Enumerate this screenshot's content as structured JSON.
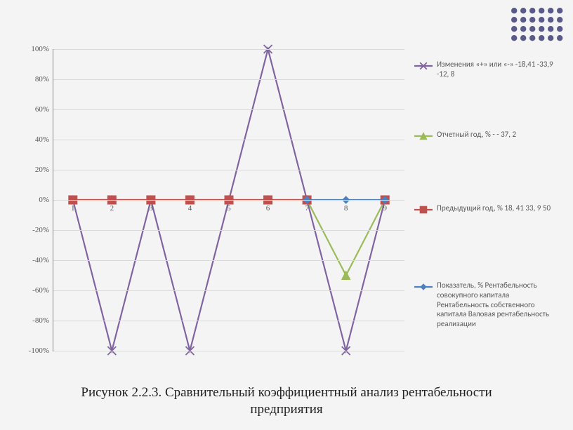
{
  "decor": {
    "dot_color": "#5a5a8a",
    "rows": 4,
    "cols": 6,
    "r": 4.2,
    "gap": 13
  },
  "caption": {
    "line1": "Рисунок 2.2.3. Сравнительный коэффициентный анализ рентабельности",
    "line2": "предприятия",
    "fontsize": 19
  },
  "chart": {
    "type": "line",
    "background_color": "#f4f4f4",
    "grid_color": "#d9d9d9",
    "axis_color": "#888888",
    "tick_font_color": "#595959",
    "tick_fontsize": 11,
    "ylim": [
      -100,
      100
    ],
    "ytick_step": 20,
    "yticks": [
      "-100%",
      "-80%",
      "-60%",
      "-40%",
      "-20%",
      "0%",
      "20%",
      "40%",
      "60%",
      "80%",
      "100%"
    ],
    "categories": [
      "1",
      "2",
      "3",
      "4",
      "5",
      "6",
      "7",
      "8",
      "9"
    ],
    "series": [
      {
        "name": "Изменения «+» или «-» -18,41 -33,9 -12, 8",
        "color": "#8064a2",
        "line_width": 2.2,
        "marker": "x",
        "marker_size": 6,
        "values": [
          0,
          -100,
          0,
          -100,
          0,
          100,
          0,
          -100,
          0
        ]
      },
      {
        "name": "Отчетный год, % - - 37, 2",
        "color": "#9bbb59",
        "line_width": 2.2,
        "marker": "triangle",
        "marker_size": 6,
        "values": [
          0,
          0,
          0,
          0,
          0,
          0,
          0,
          -50,
          0
        ]
      },
      {
        "name": "Предыдущий год, % 18, 41 33, 9 50",
        "color": "#c0504d",
        "line_width": 2.2,
        "marker": "square",
        "marker_size": 6,
        "values": [
          0,
          0,
          0,
          0,
          0,
          0,
          0,
          null,
          0
        ]
      },
      {
        "name": "Показатель, % Рентабельность совокупного капитала  Рентабельность собственного капитала  Валовая рентабельность  реализации",
        "color": "#4f81bd",
        "line_width": 2.2,
        "marker": "diamond",
        "marker_size": 5,
        "values": [
          null,
          null,
          null,
          null,
          null,
          null,
          0,
          0,
          0
        ]
      }
    ],
    "legend": {
      "position": "right",
      "fontsize": 11,
      "text_color": "#595959"
    }
  }
}
